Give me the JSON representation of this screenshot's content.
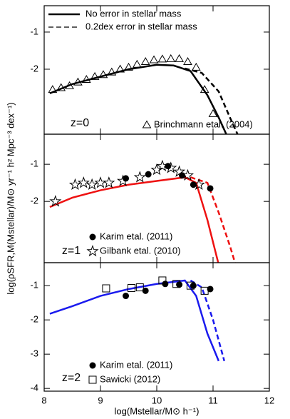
{
  "xlabel": "log(Mstellar/M⊙ h⁻¹)",
  "ylabel": "log(ρSFR,M(Mstellar)/M⊙ yr⁻¹ h² Mpc⁻³ dex⁻¹)",
  "xticks": [
    8,
    9,
    10,
    11,
    12
  ],
  "chart_data": [
    {
      "type": "line",
      "annotation": "z=0",
      "annotation_color": "#000000",
      "xlim": [
        8,
        12
      ],
      "ylim": [
        -3.75,
        -0.29
      ],
      "yticks": [
        -2,
        -1
      ],
      "series": [
        {
          "name": "No error in stellar mass",
          "color": "#000000",
          "style": "solid",
          "x": [
            8.1,
            8.5,
            9,
            9.5,
            10,
            10.3,
            10.6,
            10.9,
            11.1,
            11.25
          ],
          "values": [
            -2.65,
            -2.4,
            -2.2,
            -2.0,
            -1.88,
            -1.9,
            -2.05,
            -2.7,
            -3.3,
            -3.8
          ]
        },
        {
          "name": "0.2dex error in stellar mass",
          "color": "#000000",
          "style": "dashed",
          "x": [
            10.5,
            10.8,
            11.1,
            11.3,
            11.45
          ],
          "values": [
            -1.98,
            -2.1,
            -2.6,
            -3.3,
            -3.8
          ]
        }
      ],
      "points": [
        {
          "name": "Brinchmann etal. (2004)",
          "marker": "triangle",
          "x": [
            8.15,
            8.3,
            8.45,
            8.6,
            8.75,
            8.9,
            9.05,
            9.2,
            9.35,
            9.5,
            9.65,
            9.8,
            9.95,
            10.1,
            10.25,
            10.4,
            10.55,
            10.7,
            10.85,
            11.0
          ],
          "values": [
            -2.55,
            -2.5,
            -2.45,
            -2.35,
            -2.28,
            -2.2,
            -2.15,
            -2.08,
            -2.0,
            -1.95,
            -1.87,
            -1.8,
            -1.75,
            -1.73,
            -1.72,
            -1.72,
            -1.8,
            -1.95,
            -2.55,
            -3.2
          ]
        }
      ]
    },
    {
      "type": "line",
      "annotation": "z=1",
      "annotation_color": "#ee1111",
      "xlim": [
        8,
        12
      ],
      "ylim": [
        -3.65,
        -0.19
      ],
      "yticks": [
        -2,
        -1
      ],
      "series": [
        {
          "color": "#ee1111",
          "style": "solid",
          "x": [
            8.1,
            8.5,
            9,
            9.5,
            10,
            10.5,
            10.7,
            10.9,
            11.1
          ],
          "values": [
            -2.15,
            -1.9,
            -1.7,
            -1.55,
            -1.45,
            -1.35,
            -1.5,
            -2.5,
            -3.7
          ]
        },
        {
          "color": "#ee1111",
          "style": "dashed",
          "x": [
            10.6,
            10.9,
            11.1,
            11.3,
            11.4
          ],
          "values": [
            -1.35,
            -1.5,
            -2.3,
            -3.2,
            -3.7
          ]
        }
      ],
      "points": [
        {
          "name": "Karim etal. (2011)",
          "marker": "circle",
          "x": [
            9.45,
            9.85,
            10.2,
            10.45,
            10.65,
            10.95
          ],
          "values": [
            -1.38,
            -1.27,
            -1.05,
            -1.3,
            -1.55,
            -1.65
          ]
        },
        {
          "name": "Gilbank etal. (2010)",
          "marker": "star",
          "x": [
            8.2,
            8.55,
            8.7,
            8.85,
            9,
            9.15,
            9.4,
            9.7,
            10.0,
            10.1,
            10.25,
            10.4,
            10.55,
            10.75
          ],
          "values": [
            -2.0,
            -1.55,
            -1.5,
            -1.55,
            -1.5,
            -1.5,
            -1.45,
            -1.35,
            -1.15,
            -1.05,
            -1.1,
            -1.2,
            -1.3,
            -1.55
          ]
        }
      ]
    },
    {
      "type": "line",
      "annotation": "z=2",
      "annotation_color": "#1a1aee",
      "xlim": [
        8,
        12
      ],
      "ylim": [
        -4.08,
        -0.33
      ],
      "yticks": [
        -4,
        -3,
        -2,
        -1
      ],
      "series": [
        {
          "color": "#1a1aee",
          "style": "solid",
          "x": [
            8.1,
            8.5,
            9,
            9.5,
            10,
            10.5,
            10.7,
            10.9,
            11.1
          ],
          "values": [
            -1.82,
            -1.6,
            -1.3,
            -1.1,
            -0.95,
            -0.85,
            -1.3,
            -2.4,
            -3.2
          ]
        },
        {
          "color": "#1a1aee",
          "style": "dashed",
          "x": [
            10.6,
            10.8,
            11.0,
            11.2
          ],
          "values": [
            -0.85,
            -1.05,
            -2.0,
            -3.2
          ]
        }
      ],
      "points": [
        {
          "name": "Karim etal. (2011)",
          "marker": "circle",
          "x": [
            9.45,
            9.8,
            10.15,
            10.4,
            10.65,
            10.95
          ],
          "values": [
            -1.3,
            -1.15,
            -0.95,
            -0.97,
            -1.0,
            -1.1
          ]
        },
        {
          "name": "Sawicki (2012)",
          "marker": "square",
          "x": [
            9.1,
            9.55,
            9.7,
            10.1,
            10.35,
            10.6,
            10.85
          ],
          "values": [
            -1.08,
            -1.07,
            -1.05,
            -0.85,
            -0.95,
            -1.0,
            -1.15
          ]
        }
      ]
    }
  ]
}
